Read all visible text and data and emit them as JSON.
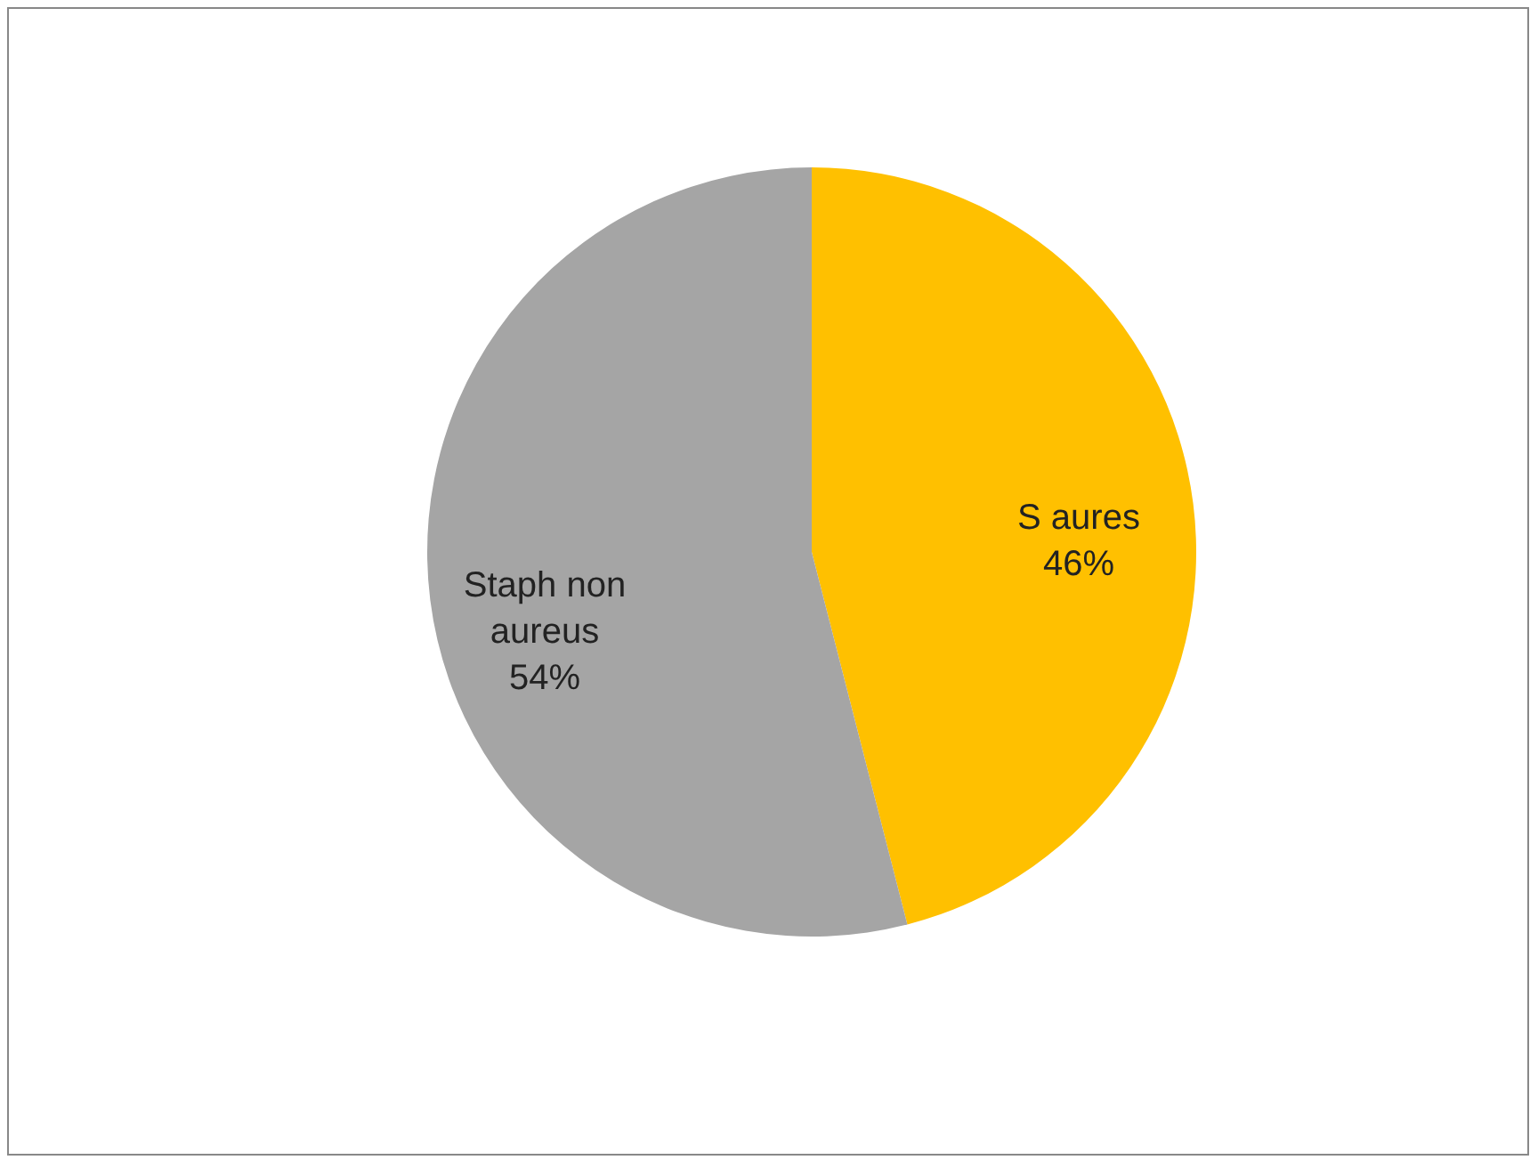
{
  "chart_data": {
    "type": "pie",
    "categories": [
      "S aures",
      "Staph non aureus"
    ],
    "values": [
      46,
      54
    ],
    "value_labels": [
      "46%",
      "54%"
    ],
    "colors": [
      "#ffc000",
      "#a5a5a5"
    ],
    "legend": false
  }
}
